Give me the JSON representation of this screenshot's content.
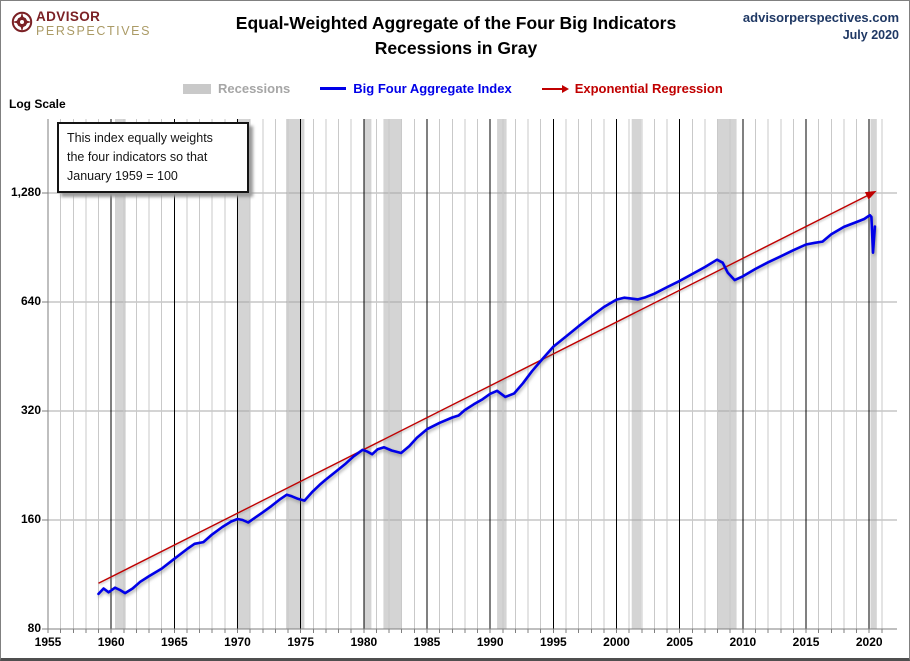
{
  "header": {
    "logo_brand_top": "ADVISOR",
    "logo_brand_bottom": "PERSPECTIVES",
    "title_line1": "Equal-Weighted Aggregate of the Four Big Indicators",
    "title_line2": "Recessions in Gray",
    "site_url": "advisorperspectives.com",
    "site_date": "July 2020"
  },
  "legend": {
    "recessions": {
      "label": "Recessions",
      "color": "#c9c9c9"
    },
    "big_four": {
      "label": "Big Four Aggregate Index",
      "color": "#0000e8"
    },
    "regression": {
      "label": "Exponential Regression",
      "color": "#c00000"
    }
  },
  "axis_note": "Log Scale",
  "annotation": {
    "line1": "This index equally weights",
    "line2": "the four indicators  so that",
    "line3": "January 1959  = 100"
  },
  "chart_data": {
    "type": "line",
    "title": "Equal-Weighted Aggregate of the Four Big Indicators",
    "subtitle": "Recessions in Gray",
    "y_scale": "log",
    "x_axis": {
      "range": [
        1955,
        2022.2
      ],
      "tick_years": [
        1955,
        1960,
        1965,
        1970,
        1975,
        1980,
        1985,
        1990,
        1995,
        2000,
        2005,
        2010,
        2015,
        2020
      ],
      "minor_year_start": 1956,
      "minor_year_end": 2021
    },
    "y_axis": {
      "ticks": [
        80,
        160,
        320,
        640,
        1280
      ],
      "tick_labels": [
        "80",
        "160",
        "320",
        "640",
        "1,280"
      ],
      "ylim": [
        80,
        2050
      ]
    },
    "colors": {
      "blue_line": "#0000e8",
      "red_line": "#c00000",
      "recession_band": "#d4d4d4",
      "grid_minor": "#c9c9c9",
      "grid_major": "#000000",
      "grid_horizontal": "#a8a8a8",
      "axis": "#7f7f7f"
    },
    "recessions": [
      [
        1960.3,
        1961.15
      ],
      [
        1969.95,
        1970.95
      ],
      [
        1973.85,
        1975.3
      ],
      [
        1980.05,
        1980.6
      ],
      [
        1981.55,
        1982.95
      ],
      [
        1990.55,
        1991.3
      ],
      [
        2001.2,
        2001.95
      ],
      [
        2007.95,
        2009.5
      ],
      [
        2020.1,
        2020.6
      ]
    ],
    "series": [
      {
        "name": "Big Four Aggregate Index",
        "color": "#0000e8",
        "width": 2.6,
        "points": [
          [
            1959.0,
            100
          ],
          [
            1959.4,
            103.5
          ],
          [
            1959.8,
            101
          ],
          [
            1960.3,
            104
          ],
          [
            1960.7,
            102.5
          ],
          [
            1961.1,
            100.5
          ],
          [
            1961.7,
            103.5
          ],
          [
            1962.3,
            108
          ],
          [
            1963.0,
            112
          ],
          [
            1964.0,
            117.5
          ],
          [
            1965.0,
            125
          ],
          [
            1966.0,
            133
          ],
          [
            1966.6,
            137.5
          ],
          [
            1967.3,
            139
          ],
          [
            1968.0,
            146
          ],
          [
            1968.8,
            153
          ],
          [
            1969.5,
            158.5
          ],
          [
            1970.0,
            161
          ],
          [
            1970.4,
            160
          ],
          [
            1970.85,
            157.5
          ],
          [
            1971.4,
            162.5
          ],
          [
            1972.0,
            168
          ],
          [
            1972.7,
            175
          ],
          [
            1973.4,
            183
          ],
          [
            1973.9,
            188
          ],
          [
            1974.3,
            186
          ],
          [
            1974.8,
            183
          ],
          [
            1975.3,
            181
          ],
          [
            1975.9,
            191
          ],
          [
            1976.5,
            200
          ],
          [
            1977.0,
            207
          ],
          [
            1977.8,
            218
          ],
          [
            1978.5,
            228
          ],
          [
            1979.2,
            240
          ],
          [
            1979.9,
            250
          ],
          [
            1980.3,
            247
          ],
          [
            1980.65,
            243
          ],
          [
            1981.1,
            251
          ],
          [
            1981.6,
            254
          ],
          [
            1982.2,
            249
          ],
          [
            1982.95,
            245
          ],
          [
            1983.6,
            256
          ],
          [
            1984.2,
            270
          ],
          [
            1985.0,
            285
          ],
          [
            1986.0,
            297
          ],
          [
            1987.0,
            307
          ],
          [
            1987.5,
            311
          ],
          [
            1988.0,
            322
          ],
          [
            1988.7,
            334
          ],
          [
            1989.4,
            345
          ],
          [
            1990.0,
            357
          ],
          [
            1990.55,
            364
          ],
          [
            1991.2,
            350
          ],
          [
            1991.9,
            358
          ],
          [
            1992.6,
            382
          ],
          [
            1993.3,
            412
          ],
          [
            1994.0,
            440
          ],
          [
            1995.0,
            482
          ],
          [
            1996.0,
            514
          ],
          [
            1997.0,
            549
          ],
          [
            1998.0,
            584
          ],
          [
            1999.0,
            620
          ],
          [
            2000.0,
            650
          ],
          [
            2000.6,
            658
          ],
          [
            2001.1,
            655
          ],
          [
            2001.7,
            651
          ],
          [
            2002.3,
            660
          ],
          [
            2003.0,
            675
          ],
          [
            2004.0,
            704
          ],
          [
            2005.0,
            732
          ],
          [
            2006.0,
            765
          ],
          [
            2007.0,
            800
          ],
          [
            2007.95,
            838
          ],
          [
            2008.4,
            822
          ],
          [
            2008.8,
            772
          ],
          [
            2009.35,
            736
          ],
          [
            2010.0,
            754
          ],
          [
            2011.0,
            790
          ],
          [
            2012.0,
            824
          ],
          [
            2013.0,
            856
          ],
          [
            2014.0,
            890
          ],
          [
            2015.0,
            923
          ],
          [
            2015.7,
            933
          ],
          [
            2016.3,
            940
          ],
          [
            2017.0,
            985
          ],
          [
            2018.0,
            1032
          ],
          [
            2019.0,
            1065
          ],
          [
            2019.6,
            1085
          ],
          [
            2020.05,
            1112
          ],
          [
            2020.17,
            1100
          ],
          [
            2020.3,
            876
          ],
          [
            2020.45,
            1035
          ]
        ]
      },
      {
        "name": "Exponential Regression",
        "color": "#c00000",
        "width": 1.4,
        "arrow_end": true,
        "points": [
          [
            1959.0,
            107
          ],
          [
            2020.3,
            1283
          ]
        ]
      }
    ]
  }
}
